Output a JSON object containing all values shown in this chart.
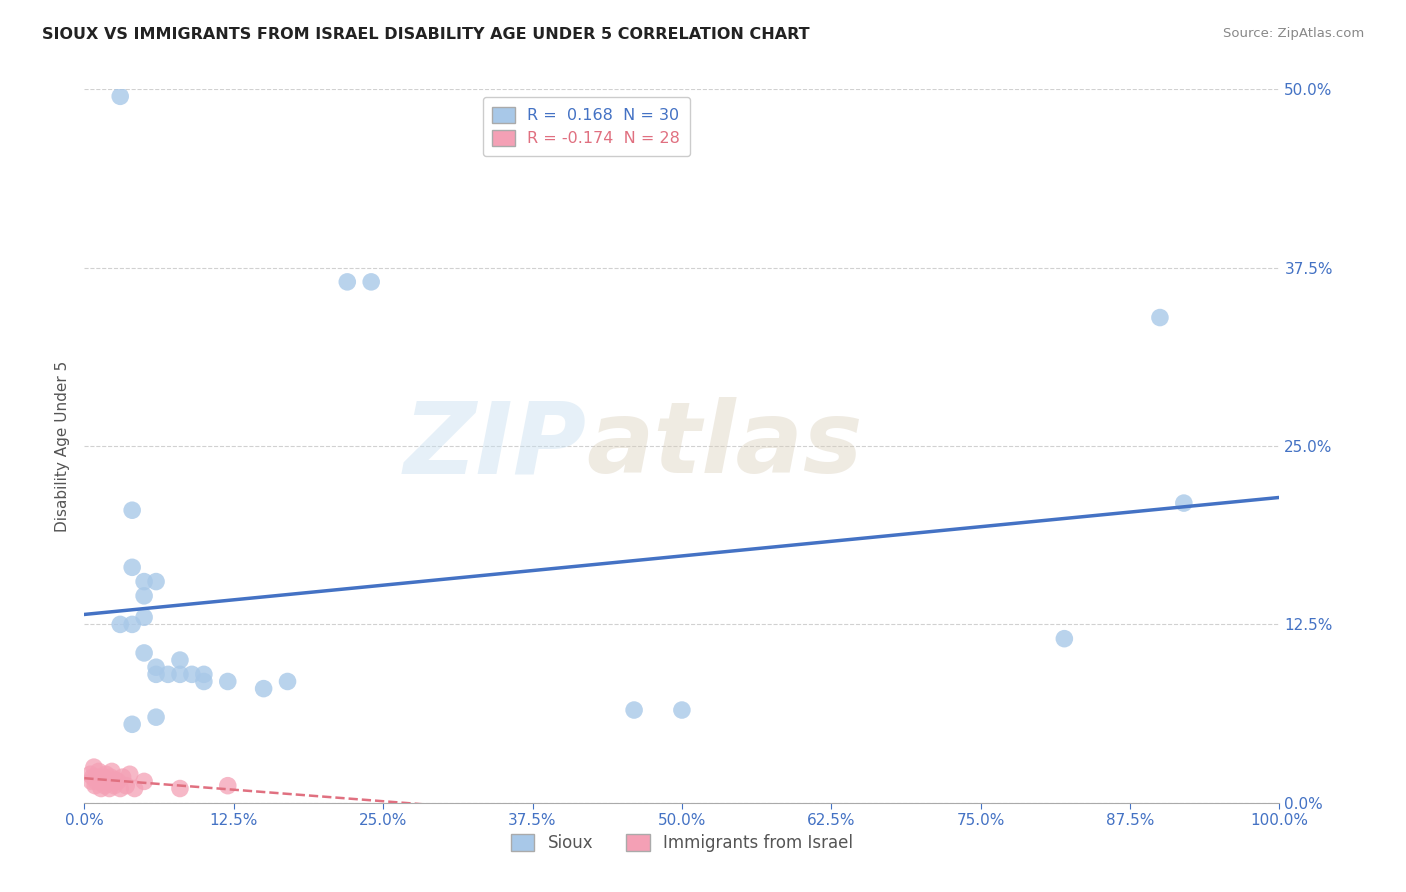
{
  "title": "SIOUX VS IMMIGRANTS FROM ISRAEL DISABILITY AGE UNDER 5 CORRELATION CHART",
  "source": "Source: ZipAtlas.com",
  "ylabel": "Disability Age Under 5",
  "legend_label1": "Sioux",
  "legend_label2": "Immigrants from Israel",
  "r1": 0.168,
  "n1": 30,
  "r2": -0.174,
  "n2": 28,
  "xlim": [
    0.0,
    1.0
  ],
  "ylim": [
    0.0,
    0.5
  ],
  "xtick_vals": [
    0.0,
    0.125,
    0.25,
    0.375,
    0.5,
    0.625,
    0.75,
    0.875,
    1.0
  ],
  "ytick_vals": [
    0.0,
    0.125,
    0.25,
    0.375,
    0.5
  ],
  "color_sioux": "#a8c8e8",
  "color_israel": "#f4a0b5",
  "color_sioux_line": "#4472c4",
  "color_israel_line": "#e07080",
  "background": "#ffffff",
  "sioux_x": [
    0.03,
    0.22,
    0.24,
    0.04,
    0.04,
    0.05,
    0.05,
    0.06,
    0.05,
    0.04,
    0.05,
    0.06,
    0.08,
    0.06,
    0.07,
    0.08,
    0.09,
    0.1,
    0.1,
    0.12,
    0.15,
    0.17,
    0.46,
    0.5,
    0.82,
    0.9,
    0.92,
    0.06,
    0.04,
    0.03
  ],
  "sioux_y": [
    0.495,
    0.365,
    0.365,
    0.205,
    0.165,
    0.155,
    0.145,
    0.155,
    0.13,
    0.125,
    0.105,
    0.095,
    0.1,
    0.09,
    0.09,
    0.09,
    0.09,
    0.09,
    0.085,
    0.085,
    0.08,
    0.085,
    0.065,
    0.065,
    0.115,
    0.34,
    0.21,
    0.06,
    0.055,
    0.125
  ],
  "israel_x": [
    0.005,
    0.006,
    0.007,
    0.008,
    0.009,
    0.01,
    0.011,
    0.012,
    0.014,
    0.015,
    0.016,
    0.017,
    0.018,
    0.02,
    0.021,
    0.022,
    0.023,
    0.025,
    0.026,
    0.028,
    0.03,
    0.032,
    0.035,
    0.038,
    0.042,
    0.05,
    0.08,
    0.12
  ],
  "israel_y": [
    0.02,
    0.015,
    0.018,
    0.025,
    0.012,
    0.015,
    0.018,
    0.022,
    0.01,
    0.015,
    0.018,
    0.012,
    0.02,
    0.015,
    0.01,
    0.018,
    0.022,
    0.012,
    0.016,
    0.015,
    0.01,
    0.018,
    0.012,
    0.02,
    0.01,
    0.015,
    0.01,
    0.012
  ]
}
